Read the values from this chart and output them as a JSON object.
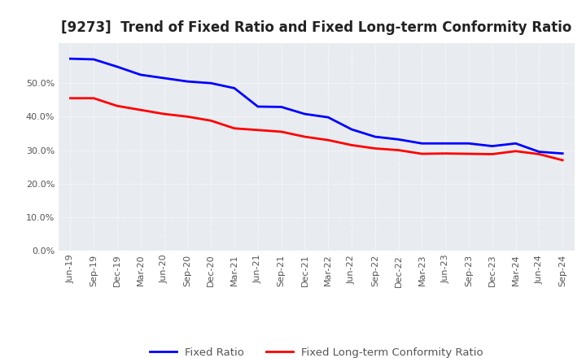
{
  "title": "[9273]  Trend of Fixed Ratio and Fixed Long-term Conformity Ratio",
  "x_labels": [
    "Jun-19",
    "Sep-19",
    "Dec-19",
    "Mar-20",
    "Jun-20",
    "Sep-20",
    "Dec-20",
    "Mar-21",
    "Jun-21",
    "Sep-21",
    "Dec-21",
    "Mar-22",
    "Jun-22",
    "Sep-22",
    "Dec-22",
    "Mar-23",
    "Jun-23",
    "Sep-23",
    "Dec-23",
    "Mar-24",
    "Jun-24",
    "Sep-24"
  ],
  "fixed_ratio": [
    0.573,
    0.571,
    0.549,
    0.525,
    0.515,
    0.505,
    0.5,
    0.485,
    0.43,
    0.429,
    0.408,
    0.398,
    0.362,
    0.34,
    0.332,
    0.32,
    0.32,
    0.32,
    0.312,
    0.32,
    0.295,
    0.29
  ],
  "fixed_lt_ratio": [
    0.455,
    0.455,
    0.432,
    0.42,
    0.408,
    0.4,
    0.388,
    0.365,
    0.36,
    0.355,
    0.34,
    0.33,
    0.315,
    0.305,
    0.3,
    0.289,
    0.29,
    0.289,
    0.288,
    0.297,
    0.288,
    0.27
  ],
  "fixed_ratio_color": "#0000ff",
  "fixed_lt_ratio_color": "#ff0000",
  "background_color": "#ffffff",
  "plot_bg_color": "#e8ecf0",
  "grid_color": "#ffffff",
  "ylim": [
    0.0,
    0.62
  ],
  "yticks": [
    0.0,
    0.1,
    0.2,
    0.3,
    0.4,
    0.5
  ],
  "line_width": 2.0,
  "title_fontsize": 12,
  "legend_fontsize": 9.5,
  "tick_fontsize": 8,
  "legend_text_color": "#555555"
}
